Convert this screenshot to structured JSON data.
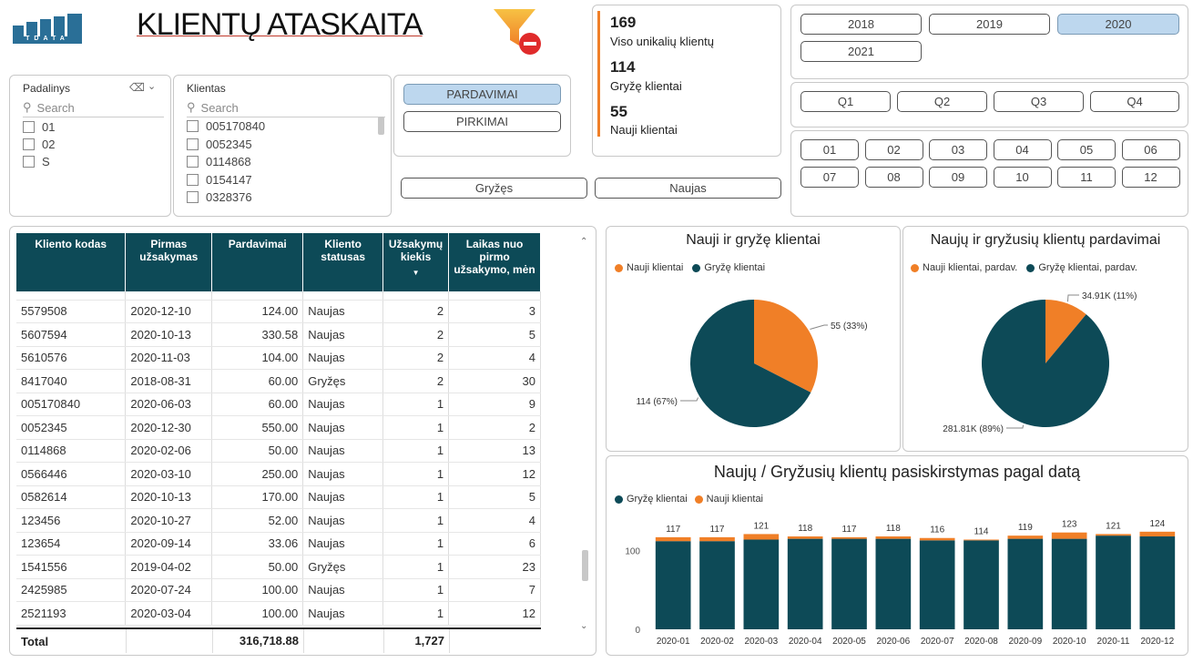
{
  "header": {
    "logo_text": "TDATA",
    "title": "KLIENTŲ ATASKAITA",
    "filter_icon": "funnel-remove-icon"
  },
  "slicer_padalinys": {
    "label": "Padalinys",
    "search_placeholder": "Search",
    "items": [
      "01",
      "02",
      "S"
    ]
  },
  "slicer_klientas": {
    "label": "Klientas",
    "search_placeholder": "Search",
    "items": [
      "005170840",
      "0052345",
      "0114868",
      "0154147",
      "0328376"
    ]
  },
  "type_buttons": {
    "sales": "PARDAVIMAI",
    "purchases": "PIRKIMAI"
  },
  "status_buttons": {
    "returning": "Gryžęs",
    "new": "Naujas"
  },
  "kpis": [
    {
      "value": "169",
      "label": "Viso unikalių klientų"
    },
    {
      "value": "114",
      "label": "Gryžę klientai"
    },
    {
      "value": "55",
      "label": "Nauji klientai"
    }
  ],
  "years": [
    "2018",
    "2019",
    "2020",
    "2021"
  ],
  "selected_year": "2020",
  "quarters": [
    "Q1",
    "Q2",
    "Q3",
    "Q4"
  ],
  "months": [
    "01",
    "02",
    "03",
    "04",
    "05",
    "06",
    "07",
    "08",
    "09",
    "10",
    "11",
    "12"
  ],
  "table": {
    "headers": [
      "Kliento kodas",
      "Pirmas užsakymas",
      "Pardavimai",
      "Kliento statusas",
      "Užsakymų kiekis",
      "Laikas nuo pirmo užsakymo, mėn"
    ],
    "rows": [
      [
        "5579508",
        "2020-12-10",
        "124.00",
        "Naujas",
        "2",
        "3"
      ],
      [
        "5607594",
        "2020-10-13",
        "330.58",
        "Naujas",
        "2",
        "5"
      ],
      [
        "5610576",
        "2020-11-03",
        "104.00",
        "Naujas",
        "2",
        "4"
      ],
      [
        "8417040",
        "2018-08-31",
        "60.00",
        "Gryžęs",
        "2",
        "30"
      ],
      [
        "005170840",
        "2020-06-03",
        "60.00",
        "Naujas",
        "1",
        "9"
      ],
      [
        "0052345",
        "2020-12-30",
        "550.00",
        "Naujas",
        "1",
        "2"
      ],
      [
        "0114868",
        "2020-02-06",
        "50.00",
        "Naujas",
        "1",
        "13"
      ],
      [
        "0566446",
        "2020-03-10",
        "250.00",
        "Naujas",
        "1",
        "12"
      ],
      [
        "0582614",
        "2020-10-13",
        "170.00",
        "Naujas",
        "1",
        "5"
      ],
      [
        "123456",
        "2020-10-27",
        "52.00",
        "Naujas",
        "1",
        "4"
      ],
      [
        "123654",
        "2020-09-14",
        "33.06",
        "Naujas",
        "1",
        "6"
      ],
      [
        "1541556",
        "2019-04-02",
        "50.00",
        "Gryžęs",
        "1",
        "23"
      ],
      [
        "2425985",
        "2020-07-24",
        "100.00",
        "Naujas",
        "1",
        "7"
      ],
      [
        "2521193",
        "2020-03-04",
        "100.00",
        "Naujas",
        "1",
        "12"
      ]
    ],
    "total": {
      "label": "Total",
      "sales": "316,718.88",
      "orders": "1,727"
    }
  },
  "colors": {
    "new": "#f07f27",
    "returning": "#0d4a57",
    "header": "#0d4a57",
    "selected": "#bdd7ee"
  },
  "chart_data": [
    {
      "type": "pie",
      "title": "Nauji ir gryžę klientai",
      "labels": [
        "Nauji klientai",
        "Gryžę klientai"
      ],
      "values": [
        55,
        114
      ],
      "data_labels": [
        "55 (33%)",
        "114 (67%)"
      ]
    },
    {
      "type": "pie",
      "title": "Naujų ir gryžusių klientų pardavimai",
      "labels": [
        "Nauji klientai, pardav.",
        "Gryžę klientai, pardav."
      ],
      "values": [
        34.91,
        281.81
      ],
      "data_labels": [
        "34.91K (11%)",
        "281.81K (89%)"
      ]
    },
    {
      "type": "bar",
      "title": "Naujų / Gryžusių klientų pasiskirstymas pagal datą",
      "categories": [
        "2020-01",
        "2020-02",
        "2020-03",
        "2020-04",
        "2020-05",
        "2020-06",
        "2020-07",
        "2020-08",
        "2020-09",
        "2020-10",
        "2020-11",
        "2020-12"
      ],
      "series": [
        {
          "name": "Gryžę klientai",
          "values": [
            112,
            112,
            114,
            115,
            115,
            115,
            113,
            113,
            115,
            115,
            119,
            118
          ]
        },
        {
          "name": "Nauji klientai",
          "values": [
            5,
            5,
            7,
            3,
            2,
            3,
            3,
            1,
            4,
            8,
            2,
            6
          ]
        }
      ],
      "totals": [
        117,
        117,
        121,
        118,
        117,
        118,
        116,
        114,
        119,
        123,
        121,
        124
      ],
      "yticks": [
        "0",
        "100"
      ],
      "ylim": [
        0,
        140
      ]
    }
  ]
}
